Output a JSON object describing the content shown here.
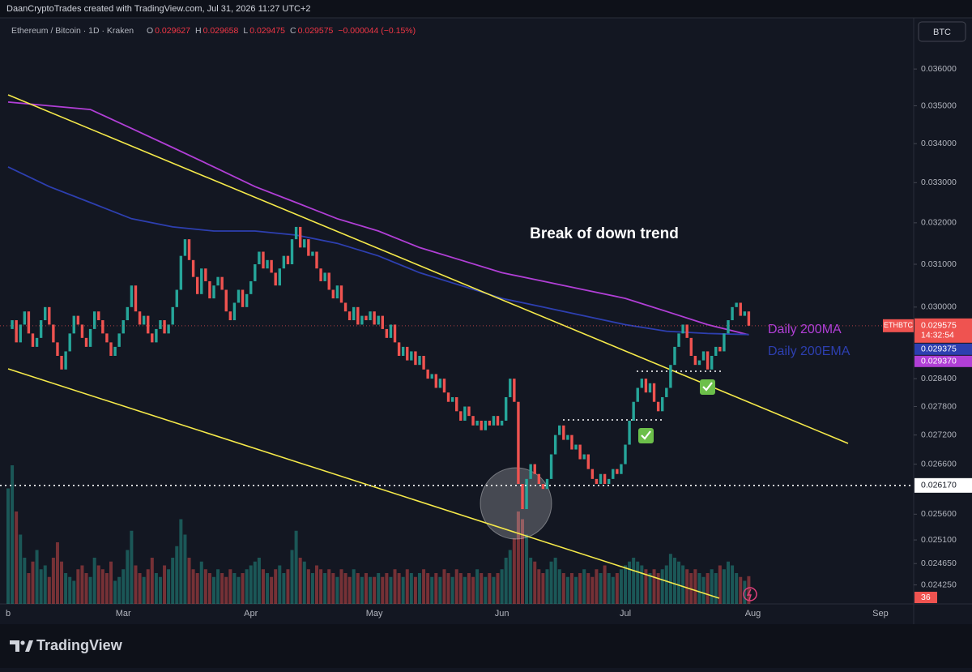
{
  "header": {
    "credit": "DaanCryptoTrades created with TradingView.com, Jul 31, 2026 11:27 UTC+2",
    "symbol": "Ethereum / Bitcoin · 1D · Kraken",
    "ohlc": [
      {
        "key": "O",
        "text": "0.029627"
      },
      {
        "key": "H",
        "text": "0.029658"
      },
      {
        "key": "L",
        "text": "0.029475"
      },
      {
        "key": "C",
        "text": "0.029575"
      }
    ],
    "change": "−0.000044 (−0.15%)",
    "currency": "BTC",
    "brand": "TradingView"
  },
  "chart_data": {
    "type": "candlestick",
    "log_scale": true,
    "ylim": [
      0.0239,
      0.0373
    ],
    "yticks": [
      {
        "value": 0.036,
        "label": "0.036000"
      },
      {
        "value": 0.035,
        "label": "0.035000"
      },
      {
        "value": 0.034,
        "label": "0.034000"
      },
      {
        "value": 0.033,
        "label": "0.033000"
      },
      {
        "value": 0.032,
        "label": "0.032000"
      },
      {
        "value": 0.031,
        "label": "0.031000"
      },
      {
        "value": 0.03,
        "label": "0.030000"
      },
      {
        "value": 0.0284,
        "label": "0.028400"
      },
      {
        "value": 0.0278,
        "label": "0.027800"
      },
      {
        "value": 0.0272,
        "label": "0.027200"
      },
      {
        "value": 0.0266,
        "label": "0.026600"
      },
      {
        "value": 0.0256,
        "label": "0.025600"
      },
      {
        "value": 0.0251,
        "label": "0.025100"
      },
      {
        "value": 0.02465,
        "label": "0.024650"
      },
      {
        "value": 0.02425,
        "label": "0.024250"
      }
    ],
    "time_labels": [
      "b",
      "Mar",
      "Apr",
      "May",
      "Jun",
      "Jul",
      "Aug",
      "Sep"
    ],
    "up_color": "#26a69a",
    "down_color": "#ef5350",
    "close": [
      0.0295,
      0.0297,
      0.0292,
      0.0296,
      0.0299,
      0.0294,
      0.0291,
      0.0293,
      0.0297,
      0.03,
      0.0296,
      0.0292,
      0.0289,
      0.0286,
      0.029,
      0.0294,
      0.0298,
      0.0296,
      0.0293,
      0.0291,
      0.0295,
      0.0299,
      0.0297,
      0.0294,
      0.0292,
      0.0289,
      0.0291,
      0.0294,
      0.0297,
      0.03,
      0.0305,
      0.0299,
      0.0296,
      0.0298,
      0.0294,
      0.0292,
      0.0295,
      0.0297,
      0.0294,
      0.0296,
      0.03,
      0.0304,
      0.0312,
      0.0316,
      0.0311,
      0.0307,
      0.0303,
      0.0309,
      0.0306,
      0.0302,
      0.0305,
      0.0307,
      0.0304,
      0.0299,
      0.0297,
      0.0301,
      0.0304,
      0.03,
      0.0303,
      0.0306,
      0.031,
      0.0313,
      0.0309,
      0.0311,
      0.0308,
      0.0305,
      0.0309,
      0.0312,
      0.031,
      0.0316,
      0.0319,
      0.0314,
      0.0316,
      0.0312,
      0.0313,
      0.0309,
      0.0306,
      0.0308,
      0.0304,
      0.0302,
      0.0305,
      0.0301,
      0.0299,
      0.0297,
      0.03,
      0.0296,
      0.0298,
      0.0297,
      0.0299,
      0.0296,
      0.0298,
      0.0295,
      0.0293,
      0.0296,
      0.0292,
      0.0289,
      0.0291,
      0.0288,
      0.029,
      0.0287,
      0.0289,
      0.0286,
      0.0284,
      0.0285,
      0.0282,
      0.0284,
      0.0281,
      0.0279,
      0.028,
      0.0277,
      0.0275,
      0.0278,
      0.0276,
      0.0274,
      0.0275,
      0.0273,
      0.0275,
      0.0274,
      0.0276,
      0.0274,
      0.0275,
      0.028,
      0.0284,
      0.0279,
      0.0262,
      0.0257,
      0.0263,
      0.0266,
      0.0264,
      0.0262,
      0.0261,
      0.0263,
      0.0268,
      0.0272,
      0.0274,
      0.0271,
      0.0272,
      0.0269,
      0.027,
      0.0267,
      0.0268,
      0.0265,
      0.0263,
      0.0262,
      0.0264,
      0.0262,
      0.0263,
      0.0265,
      0.0264,
      0.0266,
      0.027,
      0.0275,
      0.0279,
      0.0282,
      0.0284,
      0.0281,
      0.0283,
      0.0279,
      0.0277,
      0.028,
      0.0282,
      0.0287,
      0.0291,
      0.0294,
      0.0296,
      0.0293,
      0.0289,
      0.0287,
      0.0288,
      0.029,
      0.0286,
      0.0289,
      0.0291,
      0.029,
      0.0294,
      0.0297,
      0.03,
      0.0301,
      0.0298,
      0.0299,
      0.029575
    ],
    "volume_lim": [
      0,
      200
    ],
    "volume": [
      150,
      180,
      120,
      90,
      60,
      40,
      55,
      70,
      45,
      50,
      35,
      60,
      80,
      55,
      40,
      35,
      30,
      45,
      50,
      40,
      35,
      60,
      50,
      45,
      40,
      55,
      30,
      35,
      45,
      70,
      95,
      50,
      40,
      35,
      45,
      60,
      40,
      35,
      50,
      45,
      60,
      75,
      110,
      90,
      60,
      45,
      40,
      55,
      45,
      40,
      35,
      45,
      40,
      35,
      45,
      40,
      35,
      40,
      45,
      50,
      55,
      60,
      45,
      40,
      35,
      45,
      50,
      40,
      45,
      70,
      95,
      60,
      55,
      45,
      40,
      50,
      45,
      40,
      45,
      40,
      35,
      45,
      40,
      35,
      45,
      40,
      35,
      40,
      35,
      35,
      40,
      35,
      40,
      35,
      45,
      40,
      35,
      45,
      40,
      35,
      40,
      45,
      40,
      35,
      40,
      35,
      45,
      40,
      35,
      45,
      40,
      35,
      40,
      35,
      45,
      40,
      35,
      40,
      35,
      40,
      45,
      60,
      70,
      85,
      120,
      110,
      90,
      60,
      55,
      45,
      40,
      45,
      55,
      60,
      45,
      40,
      35,
      40,
      35,
      40,
      45,
      40,
      35,
      45,
      40,
      50,
      40,
      35,
      40,
      45,
      50,
      55,
      60,
      55,
      50,
      45,
      40,
      45,
      40,
      45,
      50,
      65,
      60,
      55,
      50,
      45,
      40,
      45,
      40,
      35,
      40,
      45,
      40,
      50,
      45,
      55,
      50,
      40,
      35,
      30,
      36
    ],
    "series": [
      {
        "name": "Daily 200MA",
        "color": "#b13fd6",
        "last_label": "0.029370",
        "values": [
          0.0351,
          0.035,
          0.0349,
          0.0344,
          0.0339,
          0.0334,
          0.0329,
          0.0325,
          0.0321,
          0.0318,
          0.0314,
          0.0311,
          0.0308,
          0.0306,
          0.0304,
          0.0302,
          0.0299,
          0.0296,
          0.02937
        ]
      },
      {
        "name": "Daily 200EMA",
        "color": "#2d3fb0",
        "last_label": "0.029375",
        "values": [
          0.0334,
          0.0329,
          0.0325,
          0.0321,
          0.0319,
          0.0318,
          0.0318,
          0.0317,
          0.0315,
          0.0312,
          0.0308,
          0.0305,
          0.0302,
          0.03,
          0.0298,
          0.0296,
          0.02945,
          0.0294,
          0.029375
        ]
      }
    ],
    "price_tag": {
      "name": "ETHBTC",
      "label": "0.029575",
      "countdown": "14:32:54"
    },
    "level": {
      "value": 0.02617,
      "label": "0.026170"
    },
    "annotation": "Break of down trend"
  }
}
